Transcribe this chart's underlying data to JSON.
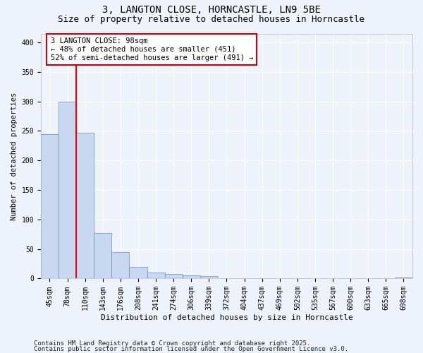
{
  "title_line1": "3, LANGTON CLOSE, HORNCASTLE, LN9 5BE",
  "title_line2": "Size of property relative to detached houses in Horncastle",
  "xlabel": "Distribution of detached houses by size in Horncastle",
  "ylabel": "Number of detached properties",
  "categories": [
    "45sqm",
    "78sqm",
    "110sqm",
    "143sqm",
    "176sqm",
    "208sqm",
    "241sqm",
    "274sqm",
    "306sqm",
    "339sqm",
    "372sqm",
    "404sqm",
    "437sqm",
    "469sqm",
    "502sqm",
    "535sqm",
    "567sqm",
    "600sqm",
    "633sqm",
    "665sqm",
    "698sqm"
  ],
  "values": [
    245,
    300,
    247,
    77,
    45,
    20,
    10,
    8,
    5,
    4,
    1,
    0,
    0,
    0,
    0,
    0,
    0,
    0,
    1,
    0,
    2
  ],
  "bar_color": "#c8d8f0",
  "bar_edge_color": "#6090c0",
  "red_line_x": 1.5,
  "annotation_text": "3 LANGTON CLOSE: 98sqm\n← 48% of detached houses are smaller (451)\n52% of semi-detached houses are larger (491) →",
  "annotation_box_color": "#ffffff",
  "annotation_box_edge": "#cc0000",
  "annotation_text_fontsize": 7.5,
  "ylim": [
    0,
    415
  ],
  "yticks": [
    0,
    50,
    100,
    150,
    200,
    250,
    300,
    350,
    400
  ],
  "background_color": "#eef2fb",
  "grid_color": "#ffffff",
  "footer_line1": "Contains HM Land Registry data © Crown copyright and database right 2025.",
  "footer_line2": "Contains public sector information licensed under the Open Government Licence v3.0.",
  "footer_fontsize": 6.5,
  "title_fontsize1": 10,
  "title_fontsize2": 9,
  "ylabel_fontsize": 7.5,
  "xlabel_fontsize": 8,
  "tick_fontsize": 7
}
